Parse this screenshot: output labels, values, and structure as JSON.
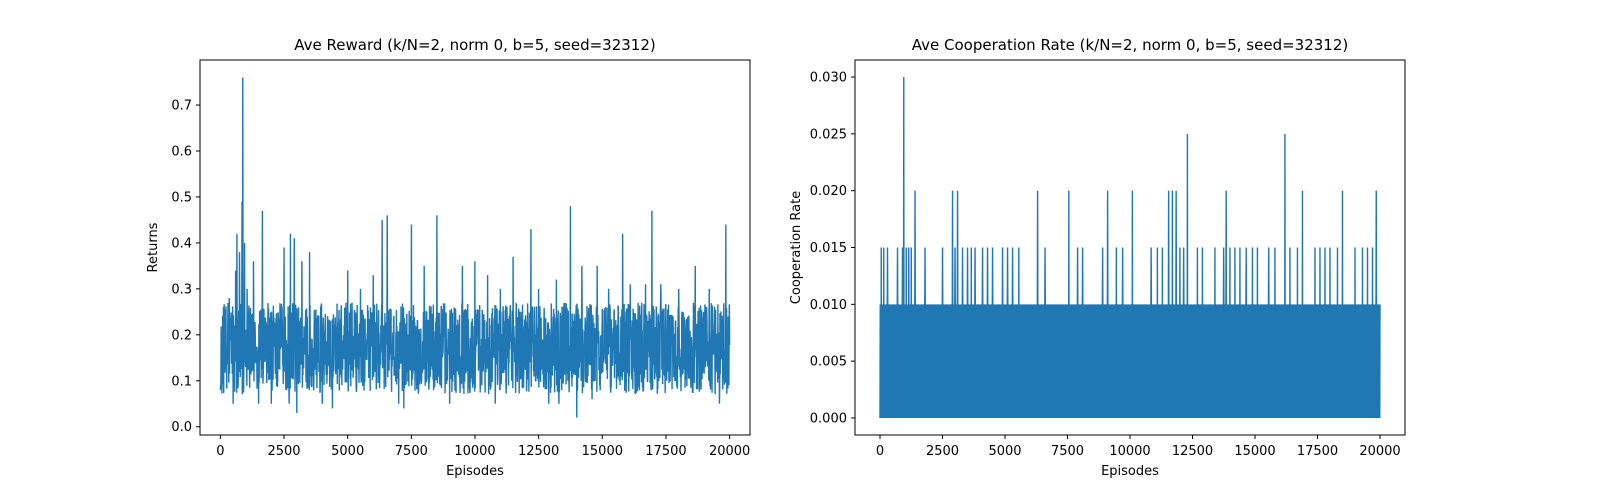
{
  "chart_data": [
    {
      "type": "line",
      "title": "Ave Reward (k/N=2, norm 0, b=5, seed=32312)",
      "xlabel": "Episodes",
      "ylabel": "Returns",
      "xlim": [
        -800,
        20800
      ],
      "ylim": [
        -0.018,
        0.798
      ],
      "xticks": [
        0,
        2500,
        5000,
        7500,
        10000,
        12500,
        15000,
        17500,
        20000
      ],
      "xtick_labels": [
        "0",
        "2500",
        "5000",
        "7500",
        "10000",
        "12500",
        "15000",
        "17500",
        "20000"
      ],
      "yticks": [
        0.0,
        0.1,
        0.2,
        0.3,
        0.4,
        0.5,
        0.6,
        0.7
      ],
      "ytick_labels": [
        "0.0",
        "0.1",
        "0.2",
        "0.3",
        "0.4",
        "0.5",
        "0.6",
        "0.7"
      ],
      "color": "#1f77b4",
      "series": [
        {
          "description": "noisy per-episode average reward; band mostly 0.07-0.27",
          "x_range": [
            0,
            20000
          ],
          "band_low": 0.07,
          "band_high": 0.27,
          "peaks": [
            [
              0,
              0.37
            ],
            [
              350,
              0.28
            ],
            [
              600,
              0.34
            ],
            [
              650,
              0.42
            ],
            [
              750,
              0.38
            ],
            [
              850,
              0.49
            ],
            [
              880,
              0.76
            ],
            [
              950,
              0.4
            ],
            [
              1050,
              0.3
            ],
            [
              1300,
              0.36
            ],
            [
              1650,
              0.47
            ],
            [
              2000,
              0.35
            ],
            [
              2500,
              0.39
            ],
            [
              2750,
              0.42
            ],
            [
              2900,
              0.41
            ],
            [
              3200,
              0.36
            ],
            [
              3500,
              0.38
            ],
            [
              4000,
              0.36
            ],
            [
              4400,
              0.3
            ],
            [
              5000,
              0.34
            ],
            [
              5500,
              0.3
            ],
            [
              6000,
              0.33
            ],
            [
              6350,
              0.45
            ],
            [
              6550,
              0.46
            ],
            [
              7000,
              0.36
            ],
            [
              7500,
              0.44
            ],
            [
              8000,
              0.35
            ],
            [
              8500,
              0.46
            ],
            [
              9000,
              0.37
            ],
            [
              9500,
              0.35
            ],
            [
              10000,
              0.36
            ],
            [
              10500,
              0.33
            ],
            [
              11000,
              0.3
            ],
            [
              11500,
              0.37
            ],
            [
              12200,
              0.43
            ],
            [
              12500,
              0.3
            ],
            [
              13200,
              0.32
            ],
            [
              13750,
              0.48
            ],
            [
              14200,
              0.35
            ],
            [
              14800,
              0.35
            ],
            [
              15250,
              0.3
            ],
            [
              15800,
              0.42
            ],
            [
              16100,
              0.31
            ],
            [
              16700,
              0.31
            ],
            [
              16950,
              0.47
            ],
            [
              17300,
              0.31
            ],
            [
              18000,
              0.3
            ],
            [
              18650,
              0.35
            ],
            [
              19200,
              0.3
            ],
            [
              19850,
              0.44
            ]
          ],
          "troughs": [
            [
              0,
              0.08
            ],
            [
              500,
              0.05
            ],
            [
              1500,
              0.05
            ],
            [
              2000,
              0.05
            ],
            [
              2700,
              0.05
            ],
            [
              3000,
              0.03
            ],
            [
              4000,
              0.05
            ],
            [
              4400,
              0.04
            ],
            [
              7000,
              0.05
            ],
            [
              7200,
              0.04
            ],
            [
              9000,
              0.05
            ],
            [
              10800,
              0.05
            ],
            [
              12900,
              0.05
            ],
            [
              13300,
              0.05
            ],
            [
              14000,
              0.02
            ],
            [
              14600,
              0.06
            ],
            [
              19600,
              0.05
            ]
          ]
        }
      ]
    },
    {
      "type": "line",
      "title": "Ave Cooperation Rate (k/N=2, norm 0, b=5, seed=32312)",
      "xlabel": "Episodes",
      "ylabel": "Cooperation Rate",
      "xlim": [
        -1000,
        21000
      ],
      "ylim": [
        -0.0015,
        0.0315
      ],
      "xticks": [
        0,
        2500,
        5000,
        7500,
        10000,
        12500,
        15000,
        17500,
        20000
      ],
      "xtick_labels": [
        "0",
        "2500",
        "5000",
        "7500",
        "10000",
        "12500",
        "15000",
        "17500",
        "20000"
      ],
      "yticks": [
        0.0,
        0.005,
        0.01,
        0.015,
        0.02,
        0.025,
        0.03
      ],
      "ytick_labels": [
        "0.000",
        "0.005",
        "0.010",
        "0.015",
        "0.020",
        "0.025",
        "0.030"
      ],
      "color": "#1f77b4",
      "series": [
        {
          "description": "per-episode cooperation rate oscillating between 0.000 and 0.010, with spikes",
          "x_range": [
            0,
            20000
          ],
          "base_low": 0.0,
          "base_high": 0.01,
          "spikes": [
            [
              50,
              0.015
            ],
            [
              150,
              0.015
            ],
            [
              300,
              0.015
            ],
            [
              700,
              0.015
            ],
            [
              900,
              0.015
            ],
            [
              950,
              0.03
            ],
            [
              1050,
              0.015
            ],
            [
              1150,
              0.015
            ],
            [
              1250,
              0.015
            ],
            [
              1400,
              0.02
            ],
            [
              1800,
              0.015
            ],
            [
              2500,
              0.015
            ],
            [
              2900,
              0.02
            ],
            [
              3100,
              0.02
            ],
            [
              3000,
              0.015
            ],
            [
              3300,
              0.015
            ],
            [
              3500,
              0.015
            ],
            [
              3650,
              0.015
            ],
            [
              3800,
              0.015
            ],
            [
              4100,
              0.015
            ],
            [
              4300,
              0.015
            ],
            [
              4500,
              0.015
            ],
            [
              4900,
              0.015
            ],
            [
              5100,
              0.015
            ],
            [
              5300,
              0.015
            ],
            [
              5550,
              0.015
            ],
            [
              6300,
              0.02
            ],
            [
              6600,
              0.015
            ],
            [
              6900,
              0.015
            ],
            [
              7550,
              0.02
            ],
            [
              7900,
              0.015
            ],
            [
              8100,
              0.015
            ],
            [
              8900,
              0.015
            ],
            [
              9100,
              0.02
            ],
            [
              9450,
              0.015
            ],
            [
              9700,
              0.015
            ],
            [
              10100,
              0.02
            ],
            [
              10850,
              0.015
            ],
            [
              11100,
              0.015
            ],
            [
              11300,
              0.015
            ],
            [
              11550,
              0.02
            ],
            [
              11700,
              0.02
            ],
            [
              11850,
              0.02
            ],
            [
              12000,
              0.015
            ],
            [
              12150,
              0.015
            ],
            [
              12300,
              0.025
            ],
            [
              12500,
              0.015
            ],
            [
              12700,
              0.015
            ],
            [
              12900,
              0.015
            ],
            [
              13400,
              0.015
            ],
            [
              13750,
              0.015
            ],
            [
              13850,
              0.02
            ],
            [
              14000,
              0.015
            ],
            [
              14200,
              0.015
            ],
            [
              14400,
              0.015
            ],
            [
              14650,
              0.015
            ],
            [
              14900,
              0.015
            ],
            [
              15100,
              0.015
            ],
            [
              15550,
              0.015
            ],
            [
              15800,
              0.015
            ],
            [
              16200,
              0.025
            ],
            [
              16400,
              0.015
            ],
            [
              16700,
              0.015
            ],
            [
              16900,
              0.02
            ],
            [
              17400,
              0.015
            ],
            [
              17600,
              0.015
            ],
            [
              17800,
              0.015
            ],
            [
              18000,
              0.015
            ],
            [
              18300,
              0.015
            ],
            [
              18500,
              0.02
            ],
            [
              19000,
              0.015
            ],
            [
              19300,
              0.015
            ],
            [
              19500,
              0.015
            ],
            [
              19700,
              0.015
            ],
            [
              19850,
              0.02
            ]
          ],
          "dips": [
            [
              1300,
              0.005
            ],
            [
              6900,
              0.005
            ],
            [
              7300,
              0.005
            ],
            [
              12500,
              0.005
            ],
            [
              16300,
              0.005
            ]
          ]
        }
      ]
    }
  ]
}
